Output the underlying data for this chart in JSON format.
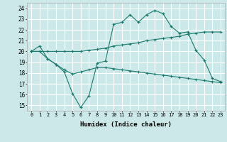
{
  "xlabel": "Humidex (Indice chaleur)",
  "ylabel": "",
  "background_color": "#cce8e8",
  "grid_color": "#ffffff",
  "line_color": "#1a7a6e",
  "xlim": [
    -0.5,
    23.5
  ],
  "ylim": [
    14.5,
    24.5
  ],
  "xticks": [
    0,
    1,
    2,
    3,
    4,
    5,
    6,
    7,
    8,
    9,
    10,
    11,
    12,
    13,
    14,
    15,
    16,
    17,
    18,
    19,
    20,
    21,
    22,
    23
  ],
  "yticks": [
    15,
    16,
    17,
    18,
    19,
    20,
    21,
    22,
    23,
    24
  ],
  "line1_x": [
    0,
    1,
    2,
    3,
    4,
    5,
    6,
    7,
    8,
    9,
    10,
    11,
    12,
    13,
    14,
    15,
    16,
    17,
    18,
    19,
    20,
    21,
    22,
    23
  ],
  "line1_y": [
    20.0,
    20.5,
    19.3,
    18.8,
    18.1,
    16.1,
    14.8,
    15.9,
    18.9,
    19.1,
    22.5,
    22.7,
    23.4,
    22.7,
    23.4,
    23.8,
    23.5,
    22.3,
    21.7,
    21.8,
    20.1,
    19.2,
    17.5,
    17.2
  ],
  "line2_x": [
    0,
    1,
    2,
    3,
    4,
    5,
    6,
    7,
    8,
    9,
    10,
    11,
    12,
    13,
    14,
    15,
    16,
    17,
    18,
    19,
    20,
    21,
    22,
    23
  ],
  "line2_y": [
    20.0,
    20.0,
    20.0,
    20.0,
    20.0,
    20.0,
    20.0,
    20.1,
    20.2,
    20.3,
    20.5,
    20.6,
    20.7,
    20.8,
    21.0,
    21.1,
    21.2,
    21.3,
    21.4,
    21.6,
    21.7,
    21.8,
    21.8,
    21.8
  ],
  "line3_x": [
    0,
    1,
    2,
    3,
    4,
    5,
    6,
    7,
    8,
    9,
    10,
    11,
    12,
    13,
    14,
    15,
    16,
    17,
    18,
    19,
    20,
    21,
    22,
    23
  ],
  "line3_y": [
    20.0,
    20.0,
    19.3,
    18.8,
    18.3,
    17.9,
    18.1,
    18.3,
    18.5,
    18.5,
    18.4,
    18.3,
    18.2,
    18.1,
    18.0,
    17.9,
    17.8,
    17.7,
    17.6,
    17.5,
    17.4,
    17.3,
    17.2,
    17.1
  ]
}
